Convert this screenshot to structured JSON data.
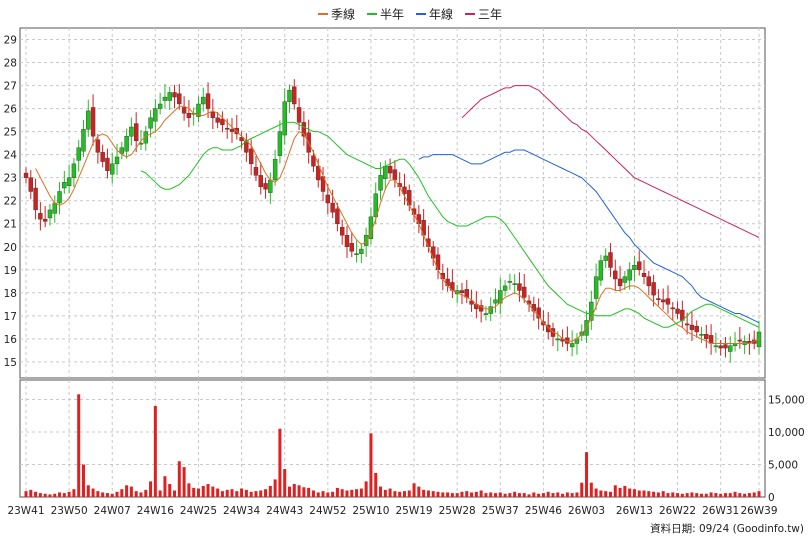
{
  "chart_data": [
    {
      "type": "candlestick",
      "title": "",
      "legend": [
        {
          "label": "季線",
          "color": "#e07020"
        },
        {
          "label": "半年",
          "color": "#20c020"
        },
        {
          "label": "年線",
          "color": "#2060e0"
        },
        {
          "label": "三年",
          "color": "#d02060"
        }
      ],
      "legend_position": "top-center",
      "ylim": [
        14.3,
        29.5
      ],
      "yticks": [
        "15",
        "16",
        "17",
        "18",
        "19",
        "20",
        "21",
        "22",
        "23",
        "24",
        "25",
        "26",
        "27",
        "28",
        "29"
      ],
      "ytick_values": [
        15,
        16,
        17,
        18,
        19,
        20,
        21,
        22,
        23,
        24,
        25,
        26,
        27,
        28,
        29
      ],
      "y_axis_side": "left",
      "grid": true,
      "up_color": "#20c020",
      "down_color": "#d02020",
      "candle_count": 156,
      "close": [
        23.0,
        22.4,
        21.6,
        21.2,
        21.1,
        21.6,
        21.9,
        22.4,
        22.8,
        23.0,
        23.6,
        24.3,
        25.1,
        25.9,
        24.8,
        24.1,
        23.7,
        23.3,
        23.6,
        23.9,
        24.3,
        24.8,
        25.2,
        24.6,
        24.5,
        25.0,
        25.6,
        26.0,
        26.2,
        26.5,
        26.7,
        26.5,
        26.2,
        25.8,
        25.6,
        25.8,
        26.2,
        26.5,
        26.0,
        25.6,
        25.4,
        25.3,
        25.1,
        25.0,
        24.9,
        24.6,
        24.1,
        23.6,
        23.1,
        22.6,
        22.5,
        22.9,
        23.8,
        25.0,
        26.3,
        26.8,
        26.2,
        25.4,
        24.8,
        24.1,
        23.5,
        22.9,
        22.4,
        21.9,
        21.5,
        21.0,
        20.5,
        20.0,
        19.8,
        19.7,
        19.9,
        20.5,
        21.3,
        22.3,
        23.1,
        23.5,
        23.2,
        22.9,
        22.6,
        22.3,
        21.8,
        21.4,
        21.0,
        20.5,
        20.0,
        19.5,
        19.0,
        18.6,
        18.3,
        18.1,
        18.1,
        18.0,
        17.8,
        17.5,
        17.3,
        17.2,
        17.1,
        17.4,
        17.7,
        18.1,
        18.3,
        18.5,
        18.4,
        18.1,
        17.8,
        17.5,
        17.2,
        16.9,
        16.6,
        16.3,
        16.1,
        16.0,
        15.9,
        15.8,
        15.8,
        16.0,
        16.3,
        16.8,
        17.6,
        18.7,
        19.4,
        19.6,
        19.1,
        18.6,
        18.3,
        18.7,
        19.0,
        19.2,
        19.0,
        18.7,
        18.3,
        17.9,
        17.7,
        17.6,
        17.5,
        17.3,
        17.1,
        16.8,
        16.6,
        16.4,
        16.3,
        16.2,
        16.0,
        15.8,
        15.7,
        15.6,
        15.6,
        15.7,
        15.8,
        15.9,
        15.9,
        15.8,
        15.8,
        16.3
      ],
      "candle_marks": {
        "up_fraction": 0.5
      },
      "ma_series": [
        {
          "name": "季線",
          "color": "#e07020",
          "values": [
            23.4,
            23.0,
            22.6,
            22.2,
            21.9,
            21.8,
            21.9,
            22.1,
            22.5,
            23.0,
            23.5,
            24.0,
            24.5,
            24.8,
            24.9,
            24.8,
            24.5,
            24.2,
            24.0,
            23.9,
            24.0,
            24.3,
            24.6,
            24.8,
            24.9,
            25.0,
            25.2,
            25.5,
            25.7,
            25.9,
            26.1,
            26.1,
            26.0,
            25.8,
            25.7,
            25.7,
            25.8,
            25.9,
            25.8,
            25.6,
            25.4,
            25.2,
            25.0,
            24.8,
            24.6,
            24.4,
            24.0,
            23.6,
            23.2,
            22.9,
            22.8,
            23.0,
            23.5,
            24.1,
            24.7,
            25.0,
            24.9,
            24.5,
            24.1,
            23.6,
            23.1,
            22.6,
            22.2,
            21.8,
            21.4,
            21.0,
            20.6,
            20.3,
            20.1,
            20.2,
            20.6,
            21.2,
            21.9,
            22.5,
            22.9,
            22.9,
            22.6,
            22.2,
            21.8,
            21.4,
            21.0,
            20.5,
            20.0,
            19.5,
            19.0,
            18.6,
            18.3,
            18.1,
            18.0,
            17.9,
            17.8,
            17.7,
            17.5,
            17.4,
            17.3,
            17.3,
            17.4,
            17.6,
            17.8,
            17.9,
            18.0,
            17.9,
            17.7,
            17.5,
            17.2,
            17.0,
            16.7,
            16.5,
            16.3,
            16.2,
            16.0,
            15.9,
            15.9,
            16.0,
            16.2,
            16.5,
            16.9,
            17.4,
            17.9,
            18.2,
            18.2,
            18.1,
            18.1,
            18.2,
            18.3,
            18.3,
            18.2,
            18.0,
            17.8,
            17.6,
            17.4,
            17.2,
            17.0,
            16.8,
            16.6,
            16.5,
            16.3,
            16.2,
            16.1,
            16.0,
            15.9,
            15.8,
            15.8,
            15.8,
            15.8,
            15.8,
            15.8,
            15.8,
            15.8,
            15.8,
            15.9,
            16.0
          ]
        },
        {
          "name": "半年",
          "color": "#20c020",
          "values": [
            23.3,
            23.2,
            23.0,
            22.8,
            22.6,
            22.5,
            22.5,
            22.6,
            22.7,
            22.9,
            23.1,
            23.4,
            23.7,
            24.0,
            24.2,
            24.3,
            24.3,
            24.2,
            24.2,
            24.2,
            24.3,
            24.4,
            24.6,
            24.7,
            24.8,
            24.9,
            25.0,
            25.1,
            25.2,
            25.3,
            25.4,
            25.4,
            25.4,
            25.3,
            25.2,
            25.1,
            25.0,
            25.0,
            24.9,
            24.8,
            24.6,
            24.4,
            24.2,
            24.0,
            23.9,
            23.8,
            23.7,
            23.6,
            23.5,
            23.4,
            23.4,
            23.5,
            23.6,
            23.7,
            23.8,
            23.8,
            23.6,
            23.3,
            23.0,
            22.6,
            22.2,
            21.9,
            21.6,
            21.3,
            21.1,
            21.0,
            20.9,
            20.9,
            20.9,
            21.0,
            21.1,
            21.2,
            21.3,
            21.3,
            21.3,
            21.2,
            21.0,
            20.7,
            20.4,
            20.1,
            19.8,
            19.5,
            19.2,
            18.9,
            18.6,
            18.3,
            18.1,
            17.9,
            17.7,
            17.5,
            17.4,
            17.3,
            17.2,
            17.1,
            17.1,
            17.0,
            17.0,
            17.0,
            17.0,
            17.1,
            17.2,
            17.3,
            17.3,
            17.2,
            17.1,
            16.9,
            16.8,
            16.7,
            16.6,
            16.5,
            16.5,
            16.6,
            16.7,
            16.8,
            17.0,
            17.2,
            17.3,
            17.4,
            17.5,
            17.5,
            17.4,
            17.3,
            17.2,
            17.1,
            17.0,
            16.9,
            16.8,
            16.7,
            16.6,
            16.5
          ]
        },
        {
          "name": "年線",
          "color": "#2060e0",
          "values": [
            23.8,
            23.9,
            23.9,
            24.0,
            24.0,
            24.0,
            24.0,
            24.0,
            23.9,
            23.8,
            23.7,
            23.6,
            23.6,
            23.6,
            23.7,
            23.8,
            23.9,
            24.0,
            24.1,
            24.1,
            24.2,
            24.2,
            24.2,
            24.1,
            24.0,
            23.9,
            23.8,
            23.7,
            23.6,
            23.5,
            23.4,
            23.3,
            23.2,
            23.1,
            23.0,
            22.8,
            22.6,
            22.4,
            22.1,
            21.8,
            21.5,
            21.2,
            20.9,
            20.6,
            20.4,
            20.1,
            19.9,
            19.7,
            19.5,
            19.3,
            19.2,
            19.1,
            19.0,
            18.9,
            18.8,
            18.7,
            18.5,
            18.3,
            18.0,
            17.8,
            17.7,
            17.6,
            17.5,
            17.4,
            17.3,
            17.2,
            17.1,
            17.1,
            17.0,
            16.9,
            16.8,
            16.7
          ]
        },
        {
          "name": "三年",
          "color": "#d02060",
          "values": [
            25.6,
            25.8,
            26.0,
            26.2,
            26.4,
            26.5,
            26.6,
            26.7,
            26.8,
            26.9,
            26.9,
            27.0,
            27.0,
            27.0,
            27.0,
            26.9,
            26.8,
            26.6,
            26.4,
            26.2,
            26.0,
            25.8,
            25.6,
            25.4,
            25.3,
            25.1,
            25.0,
            24.8,
            24.6,
            24.4,
            24.2,
            24.0,
            23.8,
            23.6,
            23.4,
            23.2,
            23.0,
            22.9,
            22.8,
            22.7,
            22.6,
            22.5,
            22.4,
            22.3,
            22.2,
            22.1,
            22.0,
            21.9,
            21.8,
            21.7,
            21.6,
            21.5,
            21.4,
            21.3,
            21.2,
            21.1,
            21.0,
            20.9,
            20.8,
            20.7,
            20.6,
            20.5,
            20.4
          ]
        }
      ]
    },
    {
      "type": "bar",
      "title": "",
      "ylim": [
        0,
        18000
      ],
      "yticks": [
        "0",
        "5,000",
        "10,000",
        "15,000"
      ],
      "ytick_values": [
        0,
        5000,
        10000,
        15000
      ],
      "y_axis_side": "right",
      "bar_color": "#e02020",
      "values": [
        900,
        1100,
        800,
        600,
        500,
        400,
        500,
        700,
        600,
        800,
        1200,
        15800,
        5000,
        1800,
        1300,
        900,
        700,
        600,
        500,
        800,
        1200,
        1800,
        1600,
        900,
        700,
        1100,
        2400,
        14000,
        1000,
        3200,
        2000,
        1000,
        5500,
        4600,
        2100,
        1400,
        1300,
        1700,
        2000,
        1600,
        1300,
        900,
        1100,
        1200,
        900,
        1300,
        1100,
        800,
        900,
        1000,
        1200,
        1700,
        2700,
        10500,
        4300,
        1600,
        2000,
        1800,
        1500,
        1400,
        1000,
        700,
        900,
        700,
        800,
        1400,
        1200,
        1000,
        1100,
        1200,
        1300,
        2400,
        9800,
        3700,
        1600,
        1100,
        1300,
        900,
        800,
        900,
        1000,
        2100,
        1600,
        1100,
        1000,
        900,
        800,
        700,
        700,
        600,
        600,
        800,
        900,
        700,
        800,
        1000,
        600,
        700,
        600,
        700,
        500,
        600,
        800,
        600,
        600,
        400,
        700,
        500,
        600,
        800,
        600,
        700,
        500,
        700,
        600,
        700,
        2200,
        6900,
        2200,
        1300,
        1000,
        900,
        800,
        1800,
        1400,
        1700,
        1300,
        1200,
        1000,
        1000,
        900,
        800,
        700,
        900,
        600,
        700,
        600,
        500,
        600,
        700,
        600,
        500,
        500,
        700,
        600,
        500,
        600,
        600,
        800,
        600,
        500,
        600,
        700,
        900
      ],
      "xticks": [
        "23W41",
        "23W50",
        "24W07",
        "24W16",
        "24W25",
        "24W34",
        "24W43",
        "24W52",
        "25W10",
        "25W19",
        "25W28",
        "25W37",
        "25W46",
        "26W03",
        "26W13",
        "26W22",
        "26W31",
        "26W39"
      ],
      "xtick_index": [
        0,
        9,
        18,
        27,
        36,
        45,
        54,
        63,
        72,
        81,
        90,
        99,
        108,
        117,
        127,
        136,
        145,
        153
      ],
      "footer": "資料日期: 09/24  (Goodinfo.tw)"
    }
  ]
}
